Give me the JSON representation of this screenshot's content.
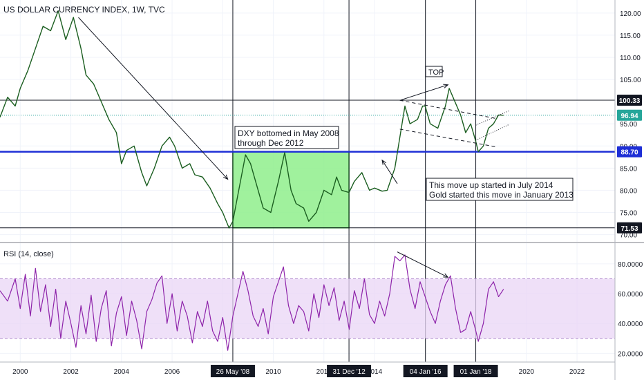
{
  "chart_data": {
    "type": "line",
    "title": "US DOLLAR CURRENCY INDEX, 1W, TVC",
    "price_axis": {
      "ticks": [
        "120.00",
        "115.00",
        "110.00",
        "105.00",
        "95.00",
        "90.00",
        "85.00",
        "80.00",
        "75.00",
        "70.00"
      ],
      "tick_values": [
        120,
        115,
        110,
        105,
        95,
        90,
        85,
        80,
        75,
        70
      ],
      "range": [
        69,
        122
      ]
    },
    "rsi_axis": {
      "ticks": [
        "80.0000",
        "60.0000",
        "40.0000",
        "20.0000"
      ],
      "tick_values": [
        80,
        60,
        40,
        20
      ],
      "range": [
        16,
        92
      ]
    },
    "time_axis": {
      "ticks": [
        "2000",
        "2002",
        "2004",
        "2006",
        "2008",
        "2010",
        "2012",
        "2014",
        "2016",
        "2018",
        "2020",
        "2022"
      ],
      "tick_values": [
        2000,
        2002,
        2004,
        2006,
        2008,
        2010,
        2012,
        2014,
        2016,
        2018,
        2020,
        2022
      ],
      "range": [
        1999.2,
        2023.5
      ]
    },
    "event_markers": [
      {
        "label": "26 May '08",
        "x": 2008.4
      },
      {
        "label": "31 Dec '12",
        "x": 2012.99
      },
      {
        "label": "04 Jan '16",
        "x": 2016.01
      },
      {
        "label": "01 Jan '18",
        "x": 2018.0
      }
    ],
    "price_levels": [
      {
        "label": "100.33",
        "value": 100.33,
        "color": "#131722",
        "style": "solid"
      },
      {
        "label": "96.94",
        "value": 96.94,
        "color": "#26a69a",
        "style": "dotted"
      },
      {
        "label": "88.70",
        "value": 88.7,
        "color": "#1e2fd6",
        "style": "solid-thick"
      },
      {
        "label": "71.53",
        "value": 71.53,
        "color": "#131722",
        "style": "solid"
      }
    ],
    "series": [
      {
        "name": "",
        "points": [
          [
            1999.2,
            96.5
          ],
          [
            1999.5,
            101
          ],
          [
            1999.8,
            99
          ],
          [
            2000.0,
            103
          ],
          [
            2000.3,
            107
          ],
          [
            2000.6,
            112
          ],
          [
            2000.9,
            117
          ],
          [
            2001.2,
            116
          ],
          [
            2001.5,
            120.5
          ],
          [
            2001.8,
            114
          ],
          [
            2002.1,
            119
          ],
          [
            2002.4,
            112
          ],
          [
            2002.6,
            106
          ],
          [
            2002.9,
            104
          ],
          [
            2003.2,
            100
          ],
          [
            2003.5,
            96
          ],
          [
            2003.8,
            93
          ],
          [
            2004.0,
            86
          ],
          [
            2004.2,
            89
          ],
          [
            2004.5,
            90
          ],
          [
            2004.8,
            84
          ],
          [
            2005.0,
            81
          ],
          [
            2005.3,
            85
          ],
          [
            2005.6,
            90
          ],
          [
            2005.9,
            92
          ],
          [
            2006.1,
            90
          ],
          [
            2006.4,
            85
          ],
          [
            2006.7,
            86
          ],
          [
            2006.9,
            83.5
          ],
          [
            2007.2,
            83
          ],
          [
            2007.5,
            80.5
          ],
          [
            2007.8,
            77
          ],
          [
            2008.0,
            75
          ],
          [
            2008.25,
            71.5
          ],
          [
            2008.4,
            73
          ],
          [
            2008.6,
            79
          ],
          [
            2008.9,
            88
          ],
          [
            2009.1,
            86
          ],
          [
            2009.3,
            82
          ],
          [
            2009.6,
            76
          ],
          [
            2009.9,
            75
          ],
          [
            2010.2,
            82
          ],
          [
            2010.45,
            88.5
          ],
          [
            2010.7,
            80
          ],
          [
            2010.9,
            77
          ],
          [
            2011.2,
            76
          ],
          [
            2011.4,
            73
          ],
          [
            2011.7,
            75
          ],
          [
            2012.0,
            80
          ],
          [
            2012.3,
            79
          ],
          [
            2012.5,
            83
          ],
          [
            2012.7,
            80
          ],
          [
            2012.99,
            79.5
          ],
          [
            2013.2,
            82
          ],
          [
            2013.5,
            84
          ],
          [
            2013.8,
            80
          ],
          [
            2014.0,
            80.5
          ],
          [
            2014.3,
            79.8
          ],
          [
            2014.5,
            80
          ],
          [
            2014.8,
            85
          ],
          [
            2015.0,
            92
          ],
          [
            2015.2,
            99
          ],
          [
            2015.4,
            95
          ],
          [
            2015.7,
            96
          ],
          [
            2015.9,
            99
          ],
          [
            2016.0,
            99
          ],
          [
            2016.2,
            95
          ],
          [
            2016.5,
            94
          ],
          [
            2016.8,
            99
          ],
          [
            2016.95,
            103
          ],
          [
            2017.1,
            101
          ],
          [
            2017.4,
            97
          ],
          [
            2017.6,
            93
          ],
          [
            2017.8,
            95
          ],
          [
            2018.0,
            91
          ],
          [
            2018.1,
            88.7
          ],
          [
            2018.3,
            90
          ],
          [
            2018.5,
            94
          ],
          [
            2018.7,
            95
          ],
          [
            2018.9,
            97
          ],
          [
            2019.1,
            96.94
          ]
        ]
      },
      {
        "name": "RSI (14, close)",
        "points": [
          [
            1999.2,
            62
          ],
          [
            1999.5,
            55
          ],
          [
            1999.8,
            70
          ],
          [
            2000.0,
            50
          ],
          [
            2000.2,
            73
          ],
          [
            2000.4,
            45
          ],
          [
            2000.6,
            77
          ],
          [
            2000.8,
            48
          ],
          [
            2001.0,
            66
          ],
          [
            2001.2,
            38
          ],
          [
            2001.4,
            63
          ],
          [
            2001.6,
            30
          ],
          [
            2001.8,
            55
          ],
          [
            2002.0,
            40
          ],
          [
            2002.2,
            24
          ],
          [
            2002.4,
            52
          ],
          [
            2002.6,
            33
          ],
          [
            2002.8,
            59
          ],
          [
            2003.0,
            28
          ],
          [
            2003.2,
            50
          ],
          [
            2003.4,
            62
          ],
          [
            2003.6,
            25
          ],
          [
            2003.8,
            47
          ],
          [
            2004.0,
            58
          ],
          [
            2004.2,
            32
          ],
          [
            2004.4,
            55
          ],
          [
            2004.6,
            42
          ],
          [
            2004.8,
            23
          ],
          [
            2005.0,
            48
          ],
          [
            2005.2,
            56
          ],
          [
            2005.4,
            67
          ],
          [
            2005.6,
            72
          ],
          [
            2005.8,
            40
          ],
          [
            2006.0,
            60
          ],
          [
            2006.2,
            35
          ],
          [
            2006.4,
            55
          ],
          [
            2006.6,
            45
          ],
          [
            2006.8,
            27
          ],
          [
            2007.0,
            48
          ],
          [
            2007.2,
            38
          ],
          [
            2007.4,
            55
          ],
          [
            2007.6,
            35
          ],
          [
            2007.8,
            28
          ],
          [
            2008.0,
            44
          ],
          [
            2008.2,
            22
          ],
          [
            2008.4,
            45
          ],
          [
            2008.6,
            60
          ],
          [
            2008.8,
            75
          ],
          [
            2009.0,
            62
          ],
          [
            2009.2,
            45
          ],
          [
            2009.4,
            38
          ],
          [
            2009.6,
            50
          ],
          [
            2009.8,
            33
          ],
          [
            2010.0,
            58
          ],
          [
            2010.2,
            68
          ],
          [
            2010.4,
            78
          ],
          [
            2010.6,
            52
          ],
          [
            2010.8,
            40
          ],
          [
            2011.0,
            52
          ],
          [
            2011.2,
            48
          ],
          [
            2011.4,
            35
          ],
          [
            2011.6,
            60
          ],
          [
            2011.8,
            44
          ],
          [
            2012.0,
            66
          ],
          [
            2012.2,
            52
          ],
          [
            2012.4,
            64
          ],
          [
            2012.6,
            42
          ],
          [
            2012.8,
            55
          ],
          [
            2013.0,
            36
          ],
          [
            2013.2,
            62
          ],
          [
            2013.4,
            50
          ],
          [
            2013.6,
            70
          ],
          [
            2013.8,
            46
          ],
          [
            2014.0,
            40
          ],
          [
            2014.2,
            55
          ],
          [
            2014.4,
            45
          ],
          [
            2014.6,
            60
          ],
          [
            2014.8,
            85
          ],
          [
            2015.0,
            82
          ],
          [
            2015.2,
            86
          ],
          [
            2015.4,
            63
          ],
          [
            2015.6,
            50
          ],
          [
            2015.8,
            68
          ],
          [
            2016.0,
            58
          ],
          [
            2016.2,
            48
          ],
          [
            2016.4,
            40
          ],
          [
            2016.6,
            55
          ],
          [
            2016.8,
            66
          ],
          [
            2017.0,
            72
          ],
          [
            2017.2,
            50
          ],
          [
            2017.4,
            34
          ],
          [
            2017.6,
            36
          ],
          [
            2017.8,
            48
          ],
          [
            2018.0,
            35
          ],
          [
            2018.1,
            28
          ],
          [
            2018.3,
            40
          ],
          [
            2018.5,
            63
          ],
          [
            2018.7,
            68
          ],
          [
            2018.9,
            58
          ],
          [
            2019.1,
            63
          ]
        ]
      }
    ],
    "rsi_band": [
      30,
      70
    ],
    "highlight_zone": {
      "x": [
        2008.4,
        2012.99
      ],
      "y": [
        71.53,
        88.7
      ],
      "color": "#8fee8c"
    },
    "annotations": [
      {
        "label": "TOP"
      },
      {
        "label": "DXY bottomed in May 2008"
      },
      {
        "label": "through Dec 2012"
      },
      {
        "label": "This move up started in July 2014"
      },
      {
        "label": "Gold started this move in January 2013"
      }
    ],
    "legend": "none",
    "grid": true
  }
}
